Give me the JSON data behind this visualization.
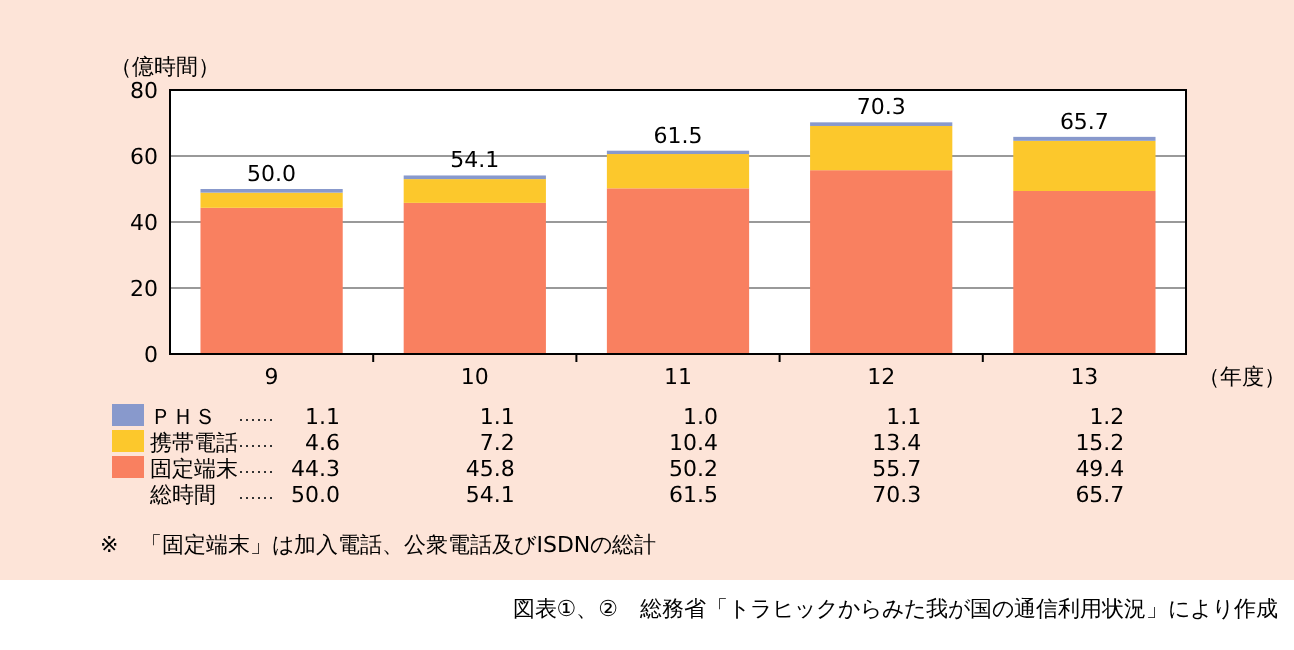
{
  "chart_data": {
    "type": "bar",
    "stacked": true,
    "ylabel": "（億時間）",
    "xlabel": "（年度）",
    "categories": [
      "9",
      "10",
      "11",
      "12",
      "13"
    ],
    "series": [
      {
        "name": "固定端末",
        "color": "#f98060",
        "values": [
          44.3,
          45.8,
          50.2,
          55.7,
          49.4
        ],
        "value_labels": [
          "44.3",
          "45.8",
          "50.2",
          "55.7",
          "49.4"
        ]
      },
      {
        "name": "携帯電話",
        "color": "#fcc82c",
        "values": [
          4.6,
          7.2,
          10.4,
          13.4,
          15.2
        ],
        "value_labels": [
          "4.6",
          "7.2",
          "10.4",
          "13.4",
          "15.2"
        ]
      },
      {
        "name": "ＰＨＳ",
        "color": "#8899cc",
        "values": [
          1.1,
          1.1,
          1.0,
          1.1,
          1.2
        ],
        "value_labels": [
          "1.1",
          "1.1",
          "1.0",
          "1.1",
          "1.2"
        ]
      }
    ],
    "totals": [
      "50.0",
      "54.1",
      "61.5",
      "70.3",
      "65.7"
    ],
    "ylim": [
      0,
      80
    ],
    "yticks": [
      0,
      20,
      40,
      60,
      80
    ],
    "grid": "y",
    "legend": "bottom",
    "annotations": [
      "総時間",
      "※　「固定端末」は加入電話、公衆電話及びISDNの総計",
      "図表①、②　総務省「トラヒックからみた我が国の通信利用状況」により作成"
    ]
  }
}
